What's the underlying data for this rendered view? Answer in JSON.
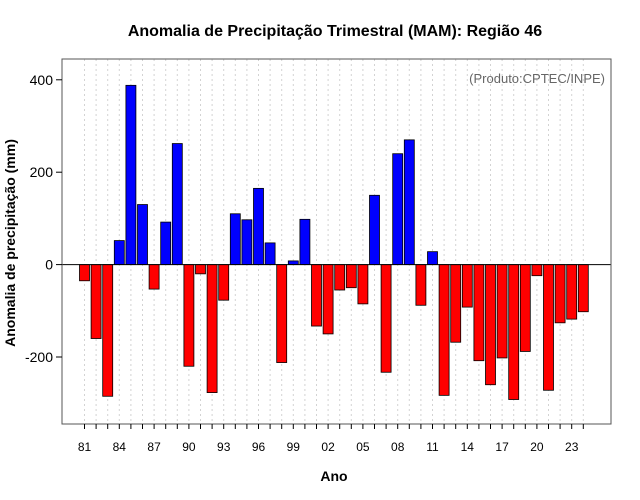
{
  "chart_data": {
    "type": "bar",
    "title": "Anomalia de Precipitação Trimestral (MAM): Região 46",
    "xlabel": "Ano",
    "ylabel": "Anomalia de precipitação (mm)",
    "source_note": "(Produto:CPTEC/INPE)",
    "ylim": [
      -345,
      445
    ],
    "yticks": [
      -200,
      0,
      200,
      400
    ],
    "categories": [
      "81",
      "82",
      "83",
      "84",
      "85",
      "86",
      "87",
      "88",
      "89",
      "90",
      "91",
      "92",
      "93",
      "94",
      "95",
      "96",
      "97",
      "98",
      "99",
      "00",
      "01",
      "02",
      "03",
      "04",
      "05",
      "06",
      "07",
      "08",
      "09",
      "10",
      "11",
      "12",
      "13",
      "14",
      "15",
      "16",
      "17",
      "18",
      "19",
      "20",
      "21",
      "22",
      "23",
      "24"
    ],
    "xtick_labels": [
      "81",
      "84",
      "87",
      "90",
      "93",
      "96",
      "99",
      "02",
      "05",
      "08",
      "11",
      "14",
      "17",
      "20",
      "23"
    ],
    "values": [
      -35,
      -160,
      -285,
      52,
      388,
      130,
      -53,
      92,
      262,
      -220,
      -20,
      -277,
      -77,
      110,
      97,
      165,
      47,
      -212,
      8,
      98,
      -133,
      -150,
      -55,
      -50,
      -85,
      150,
      -233,
      240,
      270,
      -88,
      28,
      -283,
      -168,
      -92,
      -208,
      -260,
      -202,
      -292,
      -188,
      -24,
      -272,
      -126,
      -118,
      -102
    ],
    "colors": {
      "positive": "#0000FF",
      "negative": "#FF0000",
      "baseline": "#000000",
      "grid": "#D3D3D3",
      "frame": "#555555"
    },
    "grid": true
  }
}
